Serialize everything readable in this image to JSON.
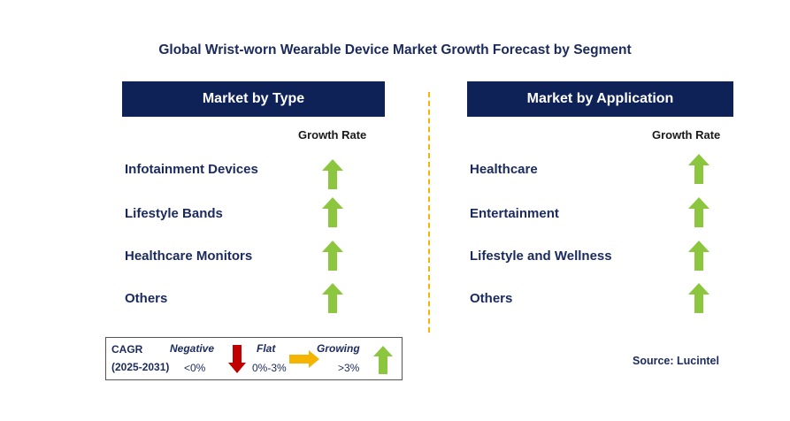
{
  "title": "Global Wrist-worn Wearable Device Market Growth Forecast by Segment",
  "left_panel": {
    "header": "Market by Type",
    "growth_label": "Growth Rate",
    "items": [
      {
        "label": "Infotainment Devices",
        "trend": "growing"
      },
      {
        "label": "Lifestyle Bands",
        "trend": "growing"
      },
      {
        "label": "Healthcare Monitors",
        "trend": "growing"
      },
      {
        "label": "Others",
        "trend": "growing"
      }
    ]
  },
  "right_panel": {
    "header": "Market by Application",
    "growth_label": "Growth Rate",
    "items": [
      {
        "label": "Healthcare",
        "trend": "growing"
      },
      {
        "label": "Entertainment",
        "trend": "growing"
      },
      {
        "label": "Lifestyle and Wellness",
        "trend": "growing"
      },
      {
        "label": "Others",
        "trend": "growing"
      }
    ]
  },
  "legend": {
    "cagr": "CAGR",
    "period": "(2025-2031)",
    "negative_label": "Negative",
    "negative_range": "<0%",
    "flat_label": "Flat",
    "flat_range": "0%-3%",
    "growing_label": "Growing",
    "growing_range": ">3%"
  },
  "source": "Source: Lucintel",
  "colors": {
    "header_bg": "#0e2257",
    "text": "#1b2a5c",
    "growing": "#8cc63f",
    "negative": "#c00000",
    "flat": "#f5b400",
    "divider": "#f5b400"
  }
}
